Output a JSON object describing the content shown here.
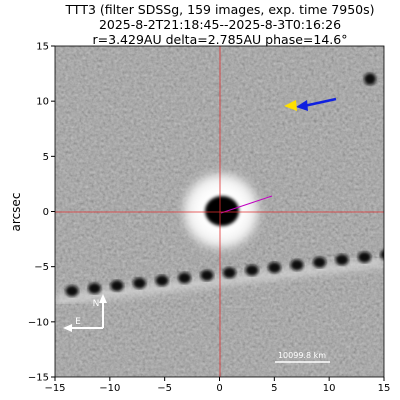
{
  "chart_data": {
    "type": "image",
    "title": [
      "TTT3 (filter SDSSg, 159 images, exp. time 7950s)",
      "2025-8-2T21:18:45--2025-8-3T0:16:26",
      "r=3.429AU delta=2.785AU phase=14.6°"
    ],
    "ylabel": "arcsec",
    "xlim": [
      -15,
      15
    ],
    "ylim": [
      -15,
      15
    ],
    "xticks": [
      {
        "value": -15,
        "label": "−15"
      },
      {
        "value": -10,
        "label": "−10"
      },
      {
        "value": -5,
        "label": "−5"
      },
      0,
      5,
      10,
      15
    ],
    "yticks": [
      {
        "value": -15,
        "label": "−15"
      },
      {
        "value": -10,
        "label": "−10"
      },
      {
        "value": -5,
        "label": "−5"
      },
      0,
      5,
      10,
      15
    ],
    "annotations": [
      "N",
      "E",
      "10099.8 km"
    ]
  }
}
